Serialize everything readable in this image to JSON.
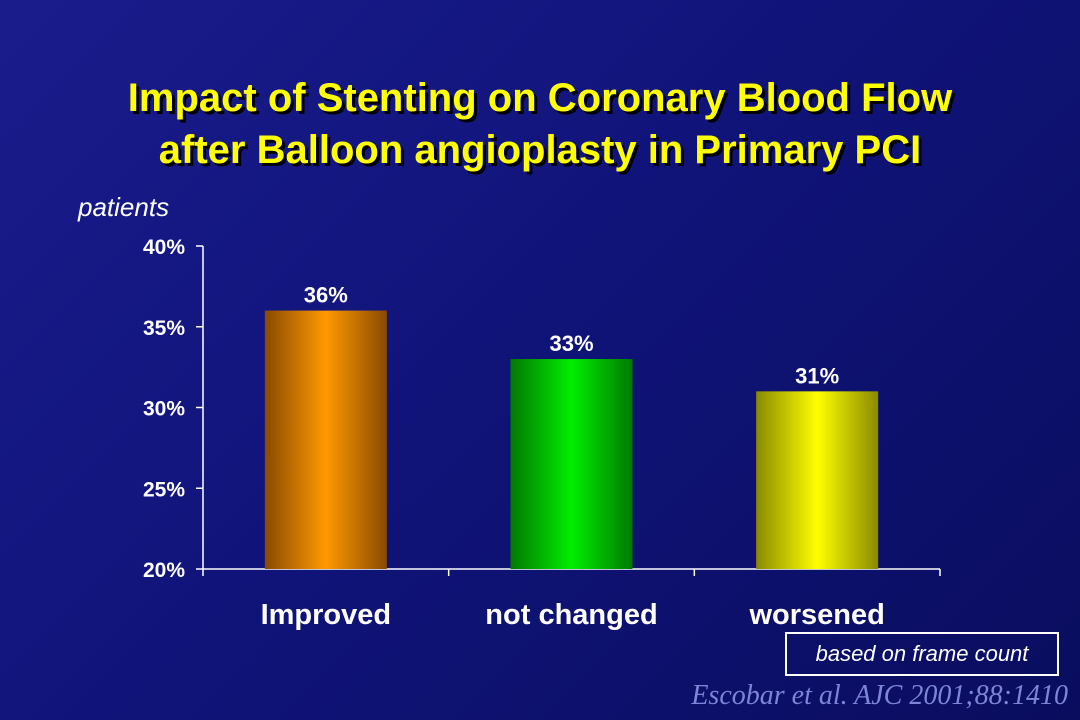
{
  "title_lines": [
    "Impact of Stenting on Coronary Blood Flow",
    "after Balloon angioplasty in Primary PCI"
  ],
  "note": "based on frame count",
  "citation": "Escobar et al. AJC 2001;88:1410",
  "colors": {
    "title": "#ffff00",
    "axis": "#ffffff",
    "bar_improved": "#ff9900",
    "bar_not_changed": "#00ee00",
    "bar_worsened": "#ffff00"
  },
  "chart_data": {
    "type": "bar",
    "ylabel": "patients",
    "categories": [
      "Improved",
      "not changed",
      "worsened"
    ],
    "values": [
      36,
      33,
      31
    ],
    "data_labels": [
      "36%",
      "33%",
      "31%"
    ],
    "ylim": [
      20,
      40
    ],
    "yticks": [
      20,
      25,
      30,
      35,
      40
    ],
    "ytick_labels": [
      "20%",
      "25%",
      "30%",
      "35%",
      "40%"
    ],
    "grid": false,
    "legend": "none"
  }
}
